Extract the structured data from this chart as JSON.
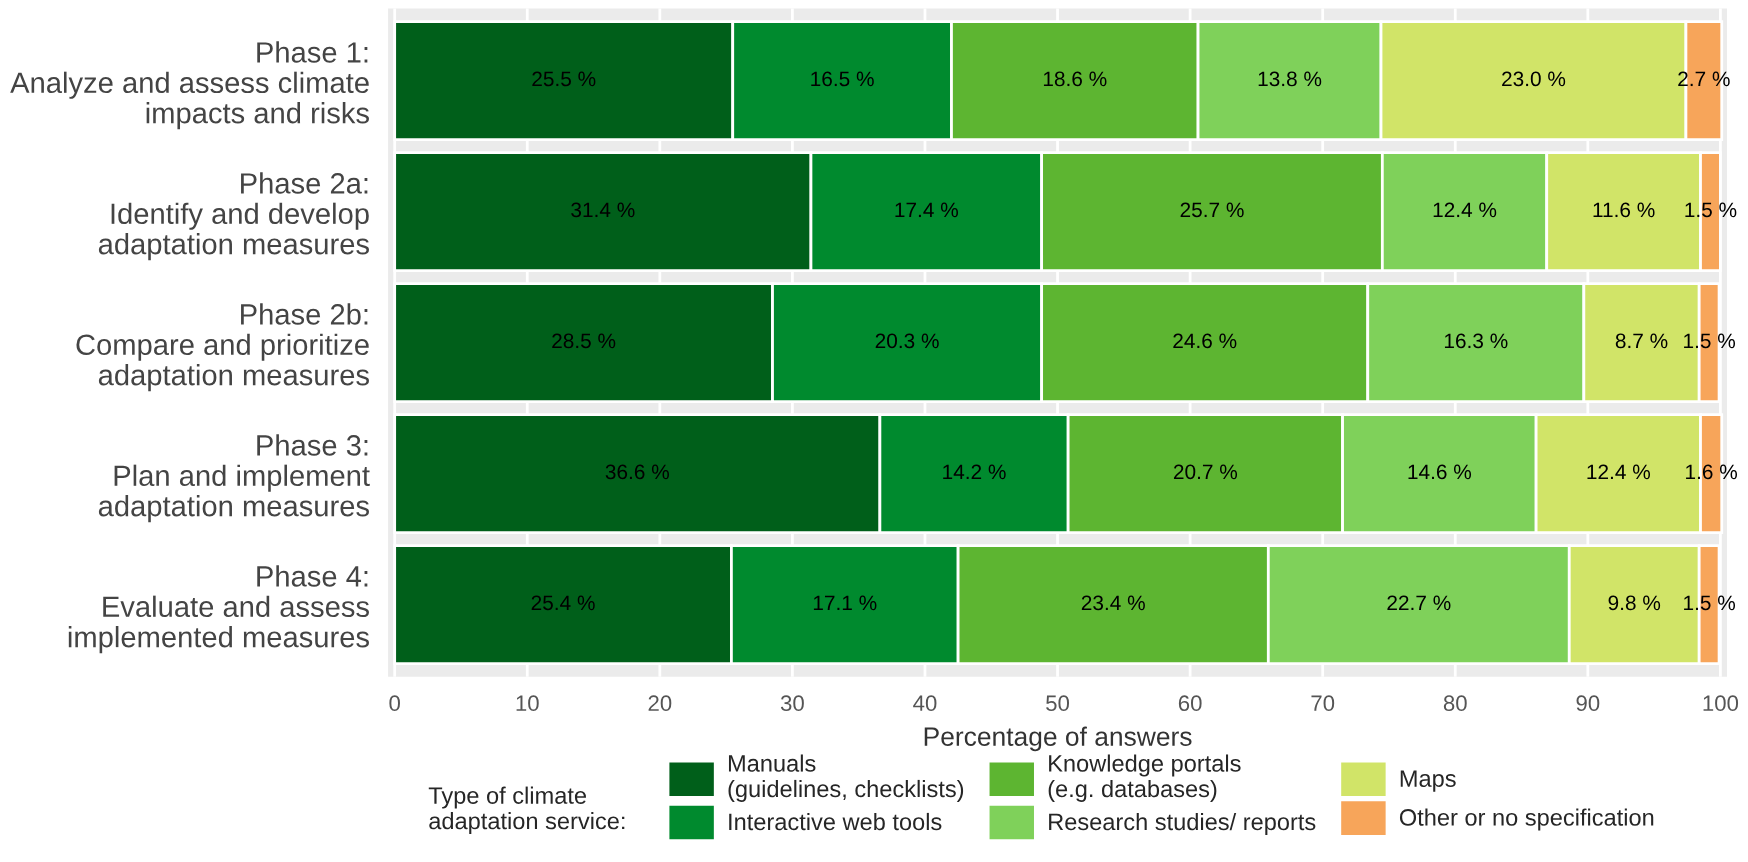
{
  "chart_data": {
    "type": "bar",
    "orientation": "horizontal",
    "stacked": true,
    "categories": [
      "Phase 1:\nAnalyze and assess climate\nimpacts and risks",
      "Phase 2a:\nIdentify and develop\nadaptation measures",
      "Phase 2b:\nCompare and prioritize\nadaptation measures",
      "Phase 3:\nPlan and implement\nadaptation measures",
      "Phase 4:\nEvaluate and assess\nimplemented measures"
    ],
    "series": [
      {
        "name": "Manuals\n(guidelines, checklists)",
        "color": "#005f1a",
        "values": [
          25.5,
          31.4,
          28.5,
          36.6,
          25.4
        ],
        "value_labels": [
          "25.5 %",
          "31.4 %",
          "28.5 %",
          "36.6 %",
          "25.4 %"
        ]
      },
      {
        "name": "Interactive web tools",
        "color": "#008a2e",
        "values": [
          16.5,
          17.4,
          20.3,
          14.2,
          17.1
        ],
        "value_labels": [
          "16.5 %",
          "17.4 %",
          "20.3 %",
          "14.2 %",
          "17.1 %"
        ]
      },
      {
        "name": "Knowledge portals\n(e.g. databases)",
        "color": "#5db531",
        "values": [
          18.6,
          25.7,
          24.6,
          20.7,
          23.4
        ],
        "value_labels": [
          "18.6 %",
          "25.7 %",
          "24.6 %",
          "20.7 %",
          "23.4 %"
        ]
      },
      {
        "name": "Research studies/ reports",
        "color": "#7fd15a",
        "values": [
          13.8,
          12.4,
          16.3,
          14.6,
          22.7
        ],
        "value_labels": [
          "13.8 %",
          "12.4 %",
          "16.3 %",
          "14.6 %",
          "22.7 %"
        ]
      },
      {
        "name": "Maps",
        "color": "#d1e468",
        "values": [
          23.0,
          11.6,
          8.7,
          12.4,
          9.8
        ],
        "value_labels": [
          "23.0 %",
          "11.6 %",
          "8.7 %",
          "12.4 %",
          "9.8 %"
        ]
      },
      {
        "name": "Other or no specification",
        "color": "#f7a55a",
        "values": [
          2.7,
          1.5,
          1.5,
          1.6,
          1.5
        ],
        "value_labels": [
          "2.7 %",
          "1.5 %",
          "1.5 %",
          "1.6 %",
          "1.5 %"
        ]
      }
    ],
    "xlabel": "Percentage of answers",
    "legend_title": "Type of climate\nadaptation service:",
    "xlim": [
      -0.5,
      100.5
    ],
    "xticks": [
      0,
      10,
      20,
      30,
      40,
      50,
      60,
      70,
      80,
      90,
      100
    ],
    "grid": "x",
    "legend": "bottom"
  }
}
